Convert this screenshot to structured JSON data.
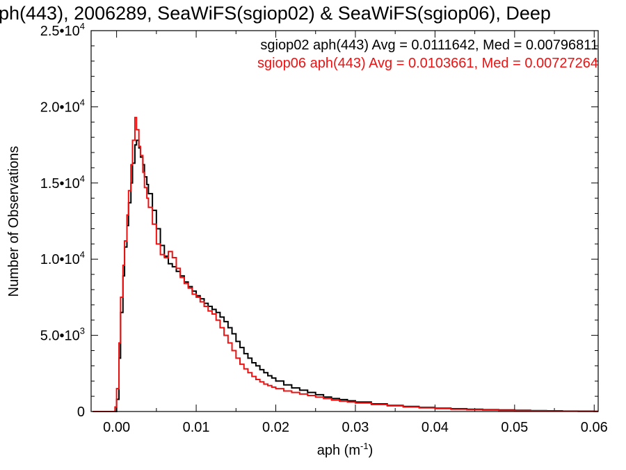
{
  "chart_data": {
    "type": "line",
    "title": "ph(443), 2006289, SeaWiFS(sgiop02) & SeaWiFS(sgiop06), Deep",
    "xlabel": "aph (m",
    "xlabel_sup": "-1",
    "xlabel_close": ")",
    "ylabel": "Number of Observations",
    "xlim": [
      -0.0032,
      0.0605
    ],
    "ylim": [
      0,
      25000
    ],
    "step": true,
    "x_ticks": [
      {
        "value": 0.0,
        "label": "0.00"
      },
      {
        "value": 0.01,
        "label": "0.01"
      },
      {
        "value": 0.02,
        "label": "0.02"
      },
      {
        "value": 0.03,
        "label": "0.03"
      },
      {
        "value": 0.04,
        "label": "0.04"
      },
      {
        "value": 0.05,
        "label": "0.05"
      },
      {
        "value": 0.06,
        "label": "0.06"
      }
    ],
    "y_ticks": [
      {
        "value": 0,
        "mantissa": "0",
        "exp": ""
      },
      {
        "value": 5000,
        "mantissa": "5.0•10",
        "exp": "3"
      },
      {
        "value": 10000,
        "mantissa": "1.0•10",
        "exp": "4"
      },
      {
        "value": 15000,
        "mantissa": "1.5•10",
        "exp": "4"
      },
      {
        "value": 20000,
        "mantissa": "2.0•10",
        "exp": "4"
      },
      {
        "value": 25000,
        "mantissa": "2.5•10",
        "exp": "4"
      }
    ],
    "legend_position": "top-right",
    "annotations": [
      {
        "text": "sgiop02 aph(443) Avg = 0.0111642, Med = 0.00796811",
        "color": "#000000"
      },
      {
        "text": "sgiop06 aph(443) Avg = 0.0103661, Med = 0.00727264",
        "color": "#ee1111"
      }
    ],
    "series": [
      {
        "name": "sgiop02",
        "color": "#000000",
        "x": [
          -0.003,
          -0.0002,
          0.0,
          0.0003,
          0.0005,
          0.0008,
          0.001,
          0.0013,
          0.0015,
          0.0018,
          0.002,
          0.0023,
          0.0025,
          0.0028,
          0.003,
          0.0033,
          0.0035,
          0.0038,
          0.004,
          0.0045,
          0.005,
          0.0055,
          0.006,
          0.0065,
          0.007,
          0.0075,
          0.008,
          0.0085,
          0.009,
          0.0095,
          0.01,
          0.0105,
          0.011,
          0.0115,
          0.012,
          0.0125,
          0.013,
          0.0135,
          0.014,
          0.0145,
          0.015,
          0.0155,
          0.016,
          0.0165,
          0.017,
          0.0175,
          0.018,
          0.0185,
          0.019,
          0.0195,
          0.02,
          0.021,
          0.022,
          0.023,
          0.024,
          0.025,
          0.026,
          0.027,
          0.028,
          0.029,
          0.03,
          0.032,
          0.034,
          0.036,
          0.038,
          0.04,
          0.042,
          0.044,
          0.046,
          0.048,
          0.05,
          0.052,
          0.054,
          0.056,
          0.058,
          0.06
        ],
        "y": [
          0,
          0,
          800,
          3500,
          6500,
          8900,
          10800,
          12200,
          13700,
          15000,
          16300,
          17500,
          17800,
          17300,
          16700,
          16200,
          15400,
          14900,
          14300,
          13200,
          12000,
          10900,
          10200,
          9700,
          9500,
          9200,
          8900,
          8500,
          8200,
          7900,
          7600,
          7400,
          7100,
          6900,
          6700,
          6500,
          6200,
          5900,
          5500,
          5100,
          4600,
          4200,
          3800,
          3500,
          3200,
          3000,
          2750,
          2550,
          2350,
          2200,
          2000,
          1750,
          1550,
          1400,
          1250,
          1100,
          950,
          850,
          780,
          700,
          620,
          500,
          400,
          330,
          270,
          220,
          180,
          150,
          120,
          100,
          80,
          60,
          45,
          30,
          20,
          10
        ]
      },
      {
        "name": "sgiop06",
        "color": "#ee1111",
        "x": [
          -0.003,
          -0.0004,
          -0.0002,
          0.0,
          0.0003,
          0.0005,
          0.0008,
          0.001,
          0.0013,
          0.0015,
          0.0018,
          0.002,
          0.0023,
          0.0025,
          0.0028,
          0.003,
          0.0033,
          0.0035,
          0.0038,
          0.004,
          0.0045,
          0.005,
          0.0055,
          0.006,
          0.0065,
          0.007,
          0.0075,
          0.008,
          0.0085,
          0.009,
          0.0095,
          0.01,
          0.0105,
          0.011,
          0.0115,
          0.012,
          0.0125,
          0.013,
          0.0135,
          0.014,
          0.0145,
          0.015,
          0.0155,
          0.016,
          0.0165,
          0.017,
          0.0175,
          0.018,
          0.0185,
          0.019,
          0.0195,
          0.02,
          0.021,
          0.022,
          0.023,
          0.024,
          0.025,
          0.026,
          0.027,
          0.028,
          0.029,
          0.03,
          0.032,
          0.034,
          0.036,
          0.038,
          0.04,
          0.042,
          0.044,
          0.046,
          0.048,
          0.05,
          0.052,
          0.054,
          0.056,
          0.058,
          0.06
        ],
        "y": [
          0,
          0,
          300,
          1500,
          4500,
          7500,
          9600,
          11200,
          12900,
          14500,
          16200,
          17800,
          19300,
          18500,
          17400,
          16800,
          15700,
          14700,
          14000,
          13400,
          12300,
          11000,
          10300,
          10100,
          10500,
          10100,
          9400,
          8800,
          8400,
          8100,
          7700,
          7500,
          7200,
          6900,
          6600,
          6400,
          6000,
          5500,
          5000,
          4500,
          4000,
          3500,
          3100,
          2800,
          2550,
          2300,
          2100,
          1950,
          1800,
          1700,
          1600,
          1500,
          1350,
          1250,
          1150,
          1050,
          950,
          850,
          750,
          680,
          620,
          560,
          460,
          370,
          300,
          240,
          190,
          150,
          120,
          95,
          75,
          55,
          40,
          30,
          20,
          12,
          6
        ]
      }
    ]
  }
}
